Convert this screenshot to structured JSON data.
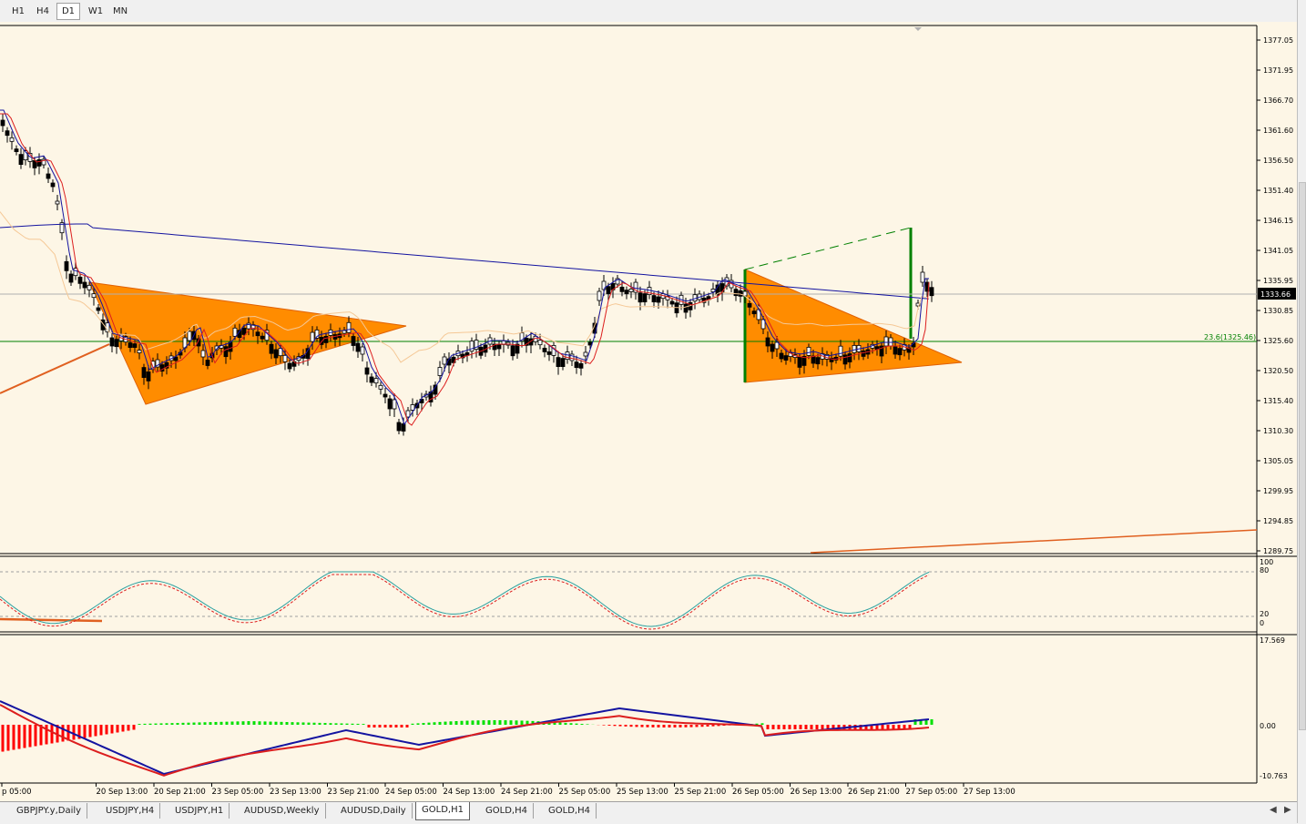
{
  "toolbar": {
    "timeframes": [
      "H1",
      "H4",
      "D1",
      "W1",
      "MN"
    ],
    "active": "D1"
  },
  "chart": {
    "symbol": "GOLD,H1",
    "price_axis": [
      "1377.05",
      "1371.95",
      "1366.70",
      "1361.60",
      "1356.50",
      "1351.40",
      "1346.15",
      "1341.05",
      "1335.95",
      "1330.85",
      "1325.60",
      "1320.50",
      "1315.40",
      "1310.30",
      "1305.05",
      "1299.95",
      "1294.85",
      "1289.75"
    ],
    "current_price": "1333.66",
    "fib_label": "23.6(1325.46)",
    "time_axis": [
      "p 05:00",
      "20 Sep 13:00",
      "20 Sep 21:00",
      "23 Sep 05:00",
      "23 Sep 13:00",
      "23 Sep 21:00",
      "24 Sep 05:00",
      "24 Sep 13:00",
      "24 Sep 21:00",
      "25 Sep 05:00",
      "25 Sep 13:00",
      "25 Sep 21:00",
      "26 Sep 05:00",
      "26 Sep 13:00",
      "26 Sep 21:00",
      "27 Sep 05:00",
      "27 Sep 13:00"
    ],
    "stoch_axis": [
      "100",
      "80",
      "20",
      "0"
    ],
    "macd_axis": [
      "17.569",
      "0.00",
      "-10.763"
    ],
    "colors": {
      "background": "#fdf6e6",
      "bull": "#ffffff",
      "bear": "#000000",
      "triangle": "#ff8c00",
      "ma_blue": "#1414a0",
      "ma_red": "#dc1e1e",
      "fib_line": "#008000",
      "trend_line": "#e06020",
      "macd_pos": "#00e000",
      "macd_neg": "#ff0000"
    }
  },
  "tabs": {
    "items": [
      "GBPJPY.y,Daily",
      "USDJPY,H4",
      "USDJPY,H1",
      "AUDUSD,Weekly",
      "AUDUSD,Daily",
      "GOLD,H1",
      "GOLD,H4",
      "GOLD,H4"
    ],
    "active": "GOLD,H1"
  }
}
